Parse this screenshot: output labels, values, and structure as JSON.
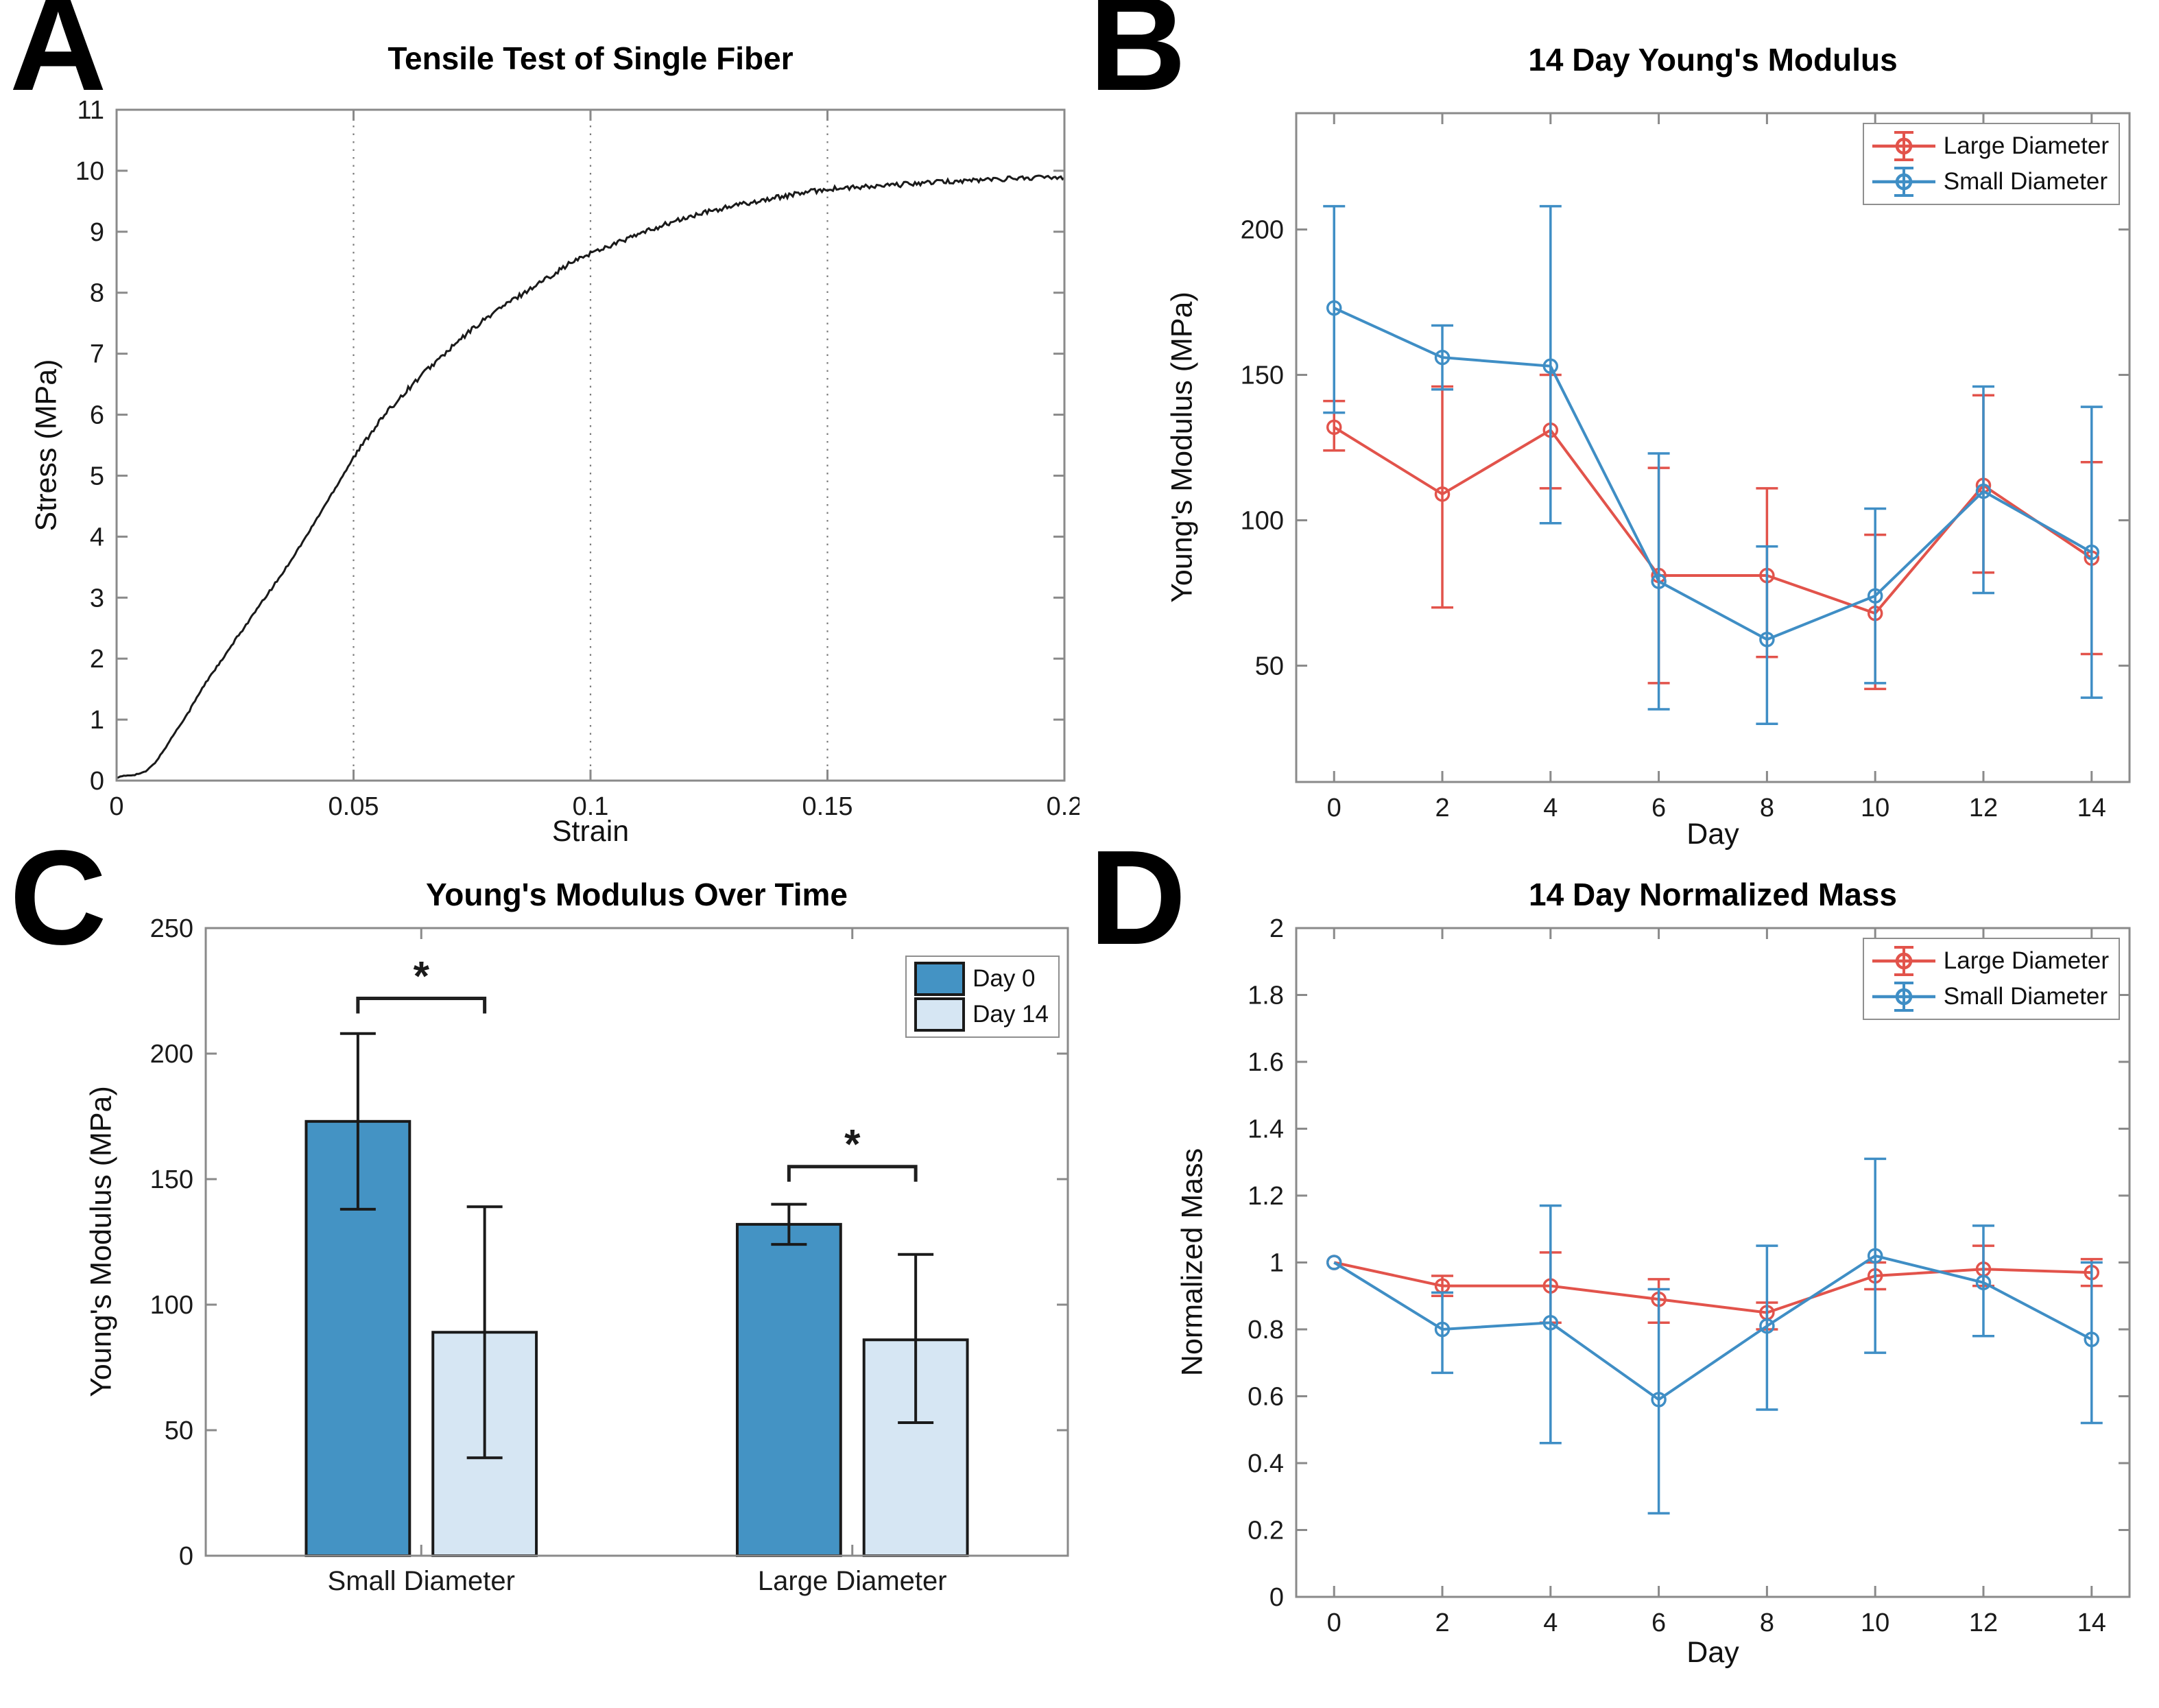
{
  "page": {
    "background": "#ffffff"
  },
  "colors": {
    "large_diameter": "#e2534b",
    "small_diameter": "#3f8ec5",
    "day0_fill": "#4493c4",
    "day14_fill": "#d6e6f3",
    "bar_edge": "#1a1a1a",
    "curve": "#1a1a1a",
    "axis": "#8a8a8a",
    "tick_text": "#1a1a1a",
    "grid": "#7a7a7a",
    "bracket": "#1f1f1f"
  },
  "chart_data": [
    {
      "id": "a",
      "panel_letter": "A",
      "type": "line",
      "title": "Tensile Test of Single Fiber",
      "xlabel": "Strain",
      "ylabel": "Stress (MPa)",
      "xlim": [
        0,
        0.2
      ],
      "ylim": [
        0,
        11
      ],
      "xticks": [
        0,
        0.05,
        0.1,
        0.15,
        0.2
      ],
      "xtick_labels": [
        "0",
        "0.05",
        "0.1",
        "0.15",
        "0.2"
      ],
      "yticks": [
        0,
        1,
        2,
        3,
        4,
        5,
        6,
        7,
        8,
        9,
        10,
        11
      ],
      "ytick_labels": [
        "0",
        "1",
        "2",
        "3",
        "4",
        "5",
        "6",
        "7",
        "8",
        "9",
        "10",
        "11"
      ],
      "grid_x": [
        0.05,
        0.1,
        0.15
      ],
      "grid_style": "dotted",
      "curve_points": {
        "x": [
          0,
          0.002,
          0.004,
          0.006,
          0.008,
          0.01,
          0.012,
          0.015,
          0.018,
          0.02,
          0.0225,
          0.025,
          0.03,
          0.035,
          0.04,
          0.045,
          0.05,
          0.055,
          0.06,
          0.065,
          0.07,
          0.075,
          0.08,
          0.085,
          0.09,
          0.095,
          0.1,
          0.105,
          0.11,
          0.115,
          0.12,
          0.125,
          0.13,
          0.135,
          0.14,
          0.145,
          0.15,
          0.155,
          0.16,
          0.165,
          0.17,
          0.175,
          0.18,
          0.185,
          0.19,
          0.195,
          0.2
        ],
        "y": [
          0.05,
          0.08,
          0.1,
          0.14,
          0.28,
          0.5,
          0.75,
          1.1,
          1.5,
          1.75,
          2.0,
          2.3,
          2.85,
          3.4,
          4.0,
          4.65,
          5.3,
          5.85,
          6.3,
          6.7,
          7.05,
          7.4,
          7.7,
          7.95,
          8.2,
          8.45,
          8.65,
          8.8,
          8.95,
          9.1,
          9.22,
          9.33,
          9.42,
          9.5,
          9.57,
          9.64,
          9.7,
          9.72,
          9.74,
          9.77,
          9.8,
          9.82,
          9.84,
          9.86,
          9.88,
          9.89,
          9.9
        ]
      }
    },
    {
      "id": "b",
      "panel_letter": "B",
      "type": "errorbar",
      "title": "14 Day Young's Modulus",
      "xlabel": "Day",
      "ylabel": "Young's Modulus (MPa)",
      "xlim": [
        -0.7,
        14.7
      ],
      "ylim": [
        10,
        240
      ],
      "xticks": [
        0,
        2,
        4,
        6,
        8,
        10,
        12,
        14
      ],
      "xtick_labels": [
        "0",
        "2",
        "4",
        "6",
        "8",
        "10",
        "12",
        "14"
      ],
      "yticks": [
        50,
        100,
        150,
        200
      ],
      "ytick_labels": [
        "50",
        "100",
        "150",
        "200"
      ],
      "x": [
        0,
        2,
        4,
        6,
        8,
        10,
        12,
        14
      ],
      "legend_position": "top-right",
      "series": [
        {
          "name": "Large Diameter",
          "color_key": "large_diameter",
          "mean": [
            132,
            109,
            131,
            81,
            81,
            68,
            112,
            87
          ],
          "lo": [
            124,
            70,
            111,
            44,
            53,
            42,
            82,
            54
          ],
          "hi": [
            141,
            146,
            150,
            118,
            111,
            95,
            143,
            120
          ]
        },
        {
          "name": "Small Diameter",
          "color_key": "small_diameter",
          "mean": [
            173,
            156,
            153,
            79,
            59,
            74,
            110,
            89
          ],
          "lo": [
            137,
            145,
            99,
            35,
            30,
            44,
            75,
            39
          ],
          "hi": [
            208,
            167,
            208,
            123,
            91,
            104,
            146,
            139
          ]
        }
      ]
    },
    {
      "id": "c",
      "panel_letter": "C",
      "type": "bar",
      "title": "Young's Modulus Over Time",
      "xlabel": "",
      "ylabel": "Young's Modulus (MPa)",
      "xlim": [
        0.5,
        2.5
      ],
      "ylim": [
        0,
        250
      ],
      "group_centers": [
        1,
        2
      ],
      "categories": [
        "Small Diameter",
        "Large Diameter"
      ],
      "yticks": [
        0,
        50,
        100,
        150,
        200,
        250
      ],
      "ytick_labels": [
        "0",
        "50",
        "100",
        "150",
        "200",
        "250"
      ],
      "bar_offset": 0.147,
      "bar_width": 0.24,
      "legend_position": "top-right",
      "series": [
        {
          "name": "Day 0",
          "color_key": "day0_fill",
          "values": [
            173,
            132
          ],
          "lo": [
            138,
            124
          ],
          "hi": [
            208,
            140
          ]
        },
        {
          "name": "Day 14",
          "color_key": "day14_fill",
          "values": [
            89,
            86
          ],
          "lo": [
            39,
            53
          ],
          "hi": [
            139,
            120
          ]
        }
      ],
      "significance": [
        {
          "group": "Small Diameter",
          "label": "*",
          "y": 222
        },
        {
          "group": "Large Diameter",
          "label": "*",
          "y": 155
        }
      ]
    },
    {
      "id": "d",
      "panel_letter": "D",
      "type": "errorbar",
      "title": "14 Day Normalized Mass",
      "xlabel": "Day",
      "ylabel": "Normalized Mass",
      "xlim": [
        -0.7,
        14.7
      ],
      "ylim": [
        0,
        2
      ],
      "xticks": [
        0,
        2,
        4,
        6,
        8,
        10,
        12,
        14
      ],
      "xtick_labels": [
        "0",
        "2",
        "4",
        "6",
        "8",
        "10",
        "12",
        "14"
      ],
      "yticks": [
        0,
        0.2,
        0.4,
        0.6,
        0.8,
        1,
        1.2,
        1.4,
        1.6,
        1.8,
        2
      ],
      "ytick_labels": [
        "0",
        "0.2",
        "0.4",
        "0.6",
        "0.8",
        "1",
        "1.2",
        "1.4",
        "1.6",
        "1.8",
        "2"
      ],
      "x": [
        0,
        2,
        4,
        6,
        8,
        10,
        12,
        14
      ],
      "legend_position": "top-right",
      "series": [
        {
          "name": "Large Diameter",
          "color_key": "large_diameter",
          "mean": [
            1.0,
            0.93,
            0.93,
            0.89,
            0.85,
            0.96,
            0.98,
            0.97
          ],
          "lo": [
            1.0,
            0.9,
            0.82,
            0.82,
            0.8,
            0.92,
            0.93,
            0.93
          ],
          "hi": [
            1.0,
            0.96,
            1.03,
            0.95,
            0.88,
            1.0,
            1.05,
            1.01
          ]
        },
        {
          "name": "Small Diameter",
          "color_key": "small_diameter",
          "mean": [
            1.0,
            0.8,
            0.82,
            0.59,
            0.81,
            1.02,
            0.94,
            0.77
          ],
          "lo": [
            1.0,
            0.67,
            0.46,
            0.25,
            0.56,
            0.73,
            0.78,
            0.52
          ],
          "hi": [
            1.0,
            0.91,
            1.17,
            0.92,
            1.05,
            1.31,
            1.11,
            1.0
          ]
        }
      ]
    }
  ]
}
